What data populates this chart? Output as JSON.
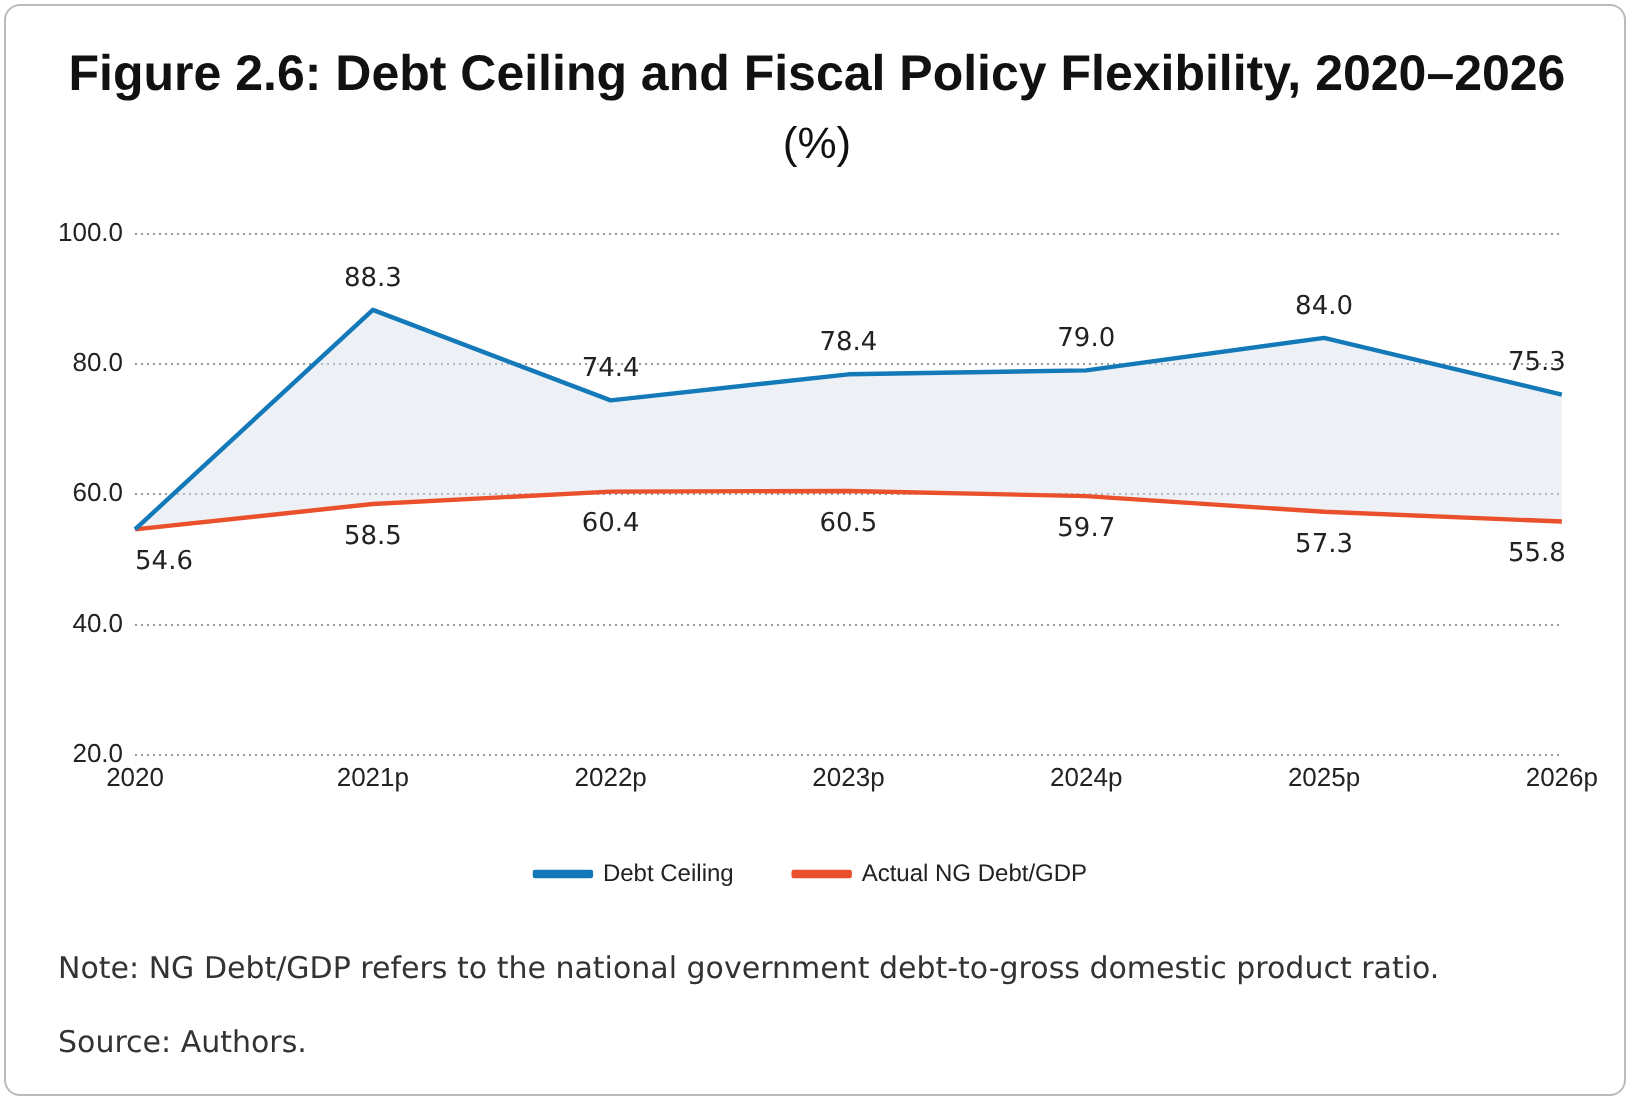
{
  "chart_data": {
    "type": "line",
    "title": "Figure 2.6: Debt Ceiling and Fiscal Policy Flexibility, 2020–2026",
    "subtitle": "(%)",
    "categories": [
      "2020",
      "2021p",
      "2022p",
      "2023p",
      "2024p",
      "2025p",
      "2026p"
    ],
    "series": [
      {
        "name": "Debt Ceiling",
        "color": "#1479b8",
        "values": [
          54.6,
          88.3,
          74.4,
          78.4,
          79.0,
          84.0,
          75.3
        ],
        "lower": [
          54.6,
          58.5,
          60.4,
          60.5,
          59.7,
          57.3,
          55.8
        ],
        "upper": [
          54.6,
          88.3,
          74.4,
          78.4,
          79.0,
          84.0,
          75.3
        ],
        "value_labels": [
          null,
          "88.3",
          "74.4",
          "78.4",
          "79.0",
          "84.0",
          "75.3"
        ]
      },
      {
        "name": "Actual NG Debt/GDP",
        "color": "#e9502b",
        "values": [
          54.6,
          58.5,
          60.4,
          60.5,
          59.7,
          57.3,
          55.8
        ],
        "value_labels": [
          "54.6",
          "58.5",
          "60.4",
          "60.5",
          "59.7",
          "57.3",
          "55.8"
        ]
      }
    ],
    "ylim": [
      20,
      100
    ],
    "yticks": [
      {
        "value": 20,
        "label": "20.0"
      },
      {
        "value": 40,
        "label": "40.0"
      },
      {
        "value": 60,
        "label": "60.0"
      },
      {
        "value": 80,
        "label": "80.0"
      },
      {
        "value": 100,
        "label": "100.0"
      }
    ],
    "grid": "y",
    "legend": "bottom",
    "marker": "none",
    "line_style": "solid",
    "annotations": [
      "Note: NG Debt/GDP refers to the national government debt-to-gross domestic product ratio.",
      "Source: Authors."
    ]
  }
}
